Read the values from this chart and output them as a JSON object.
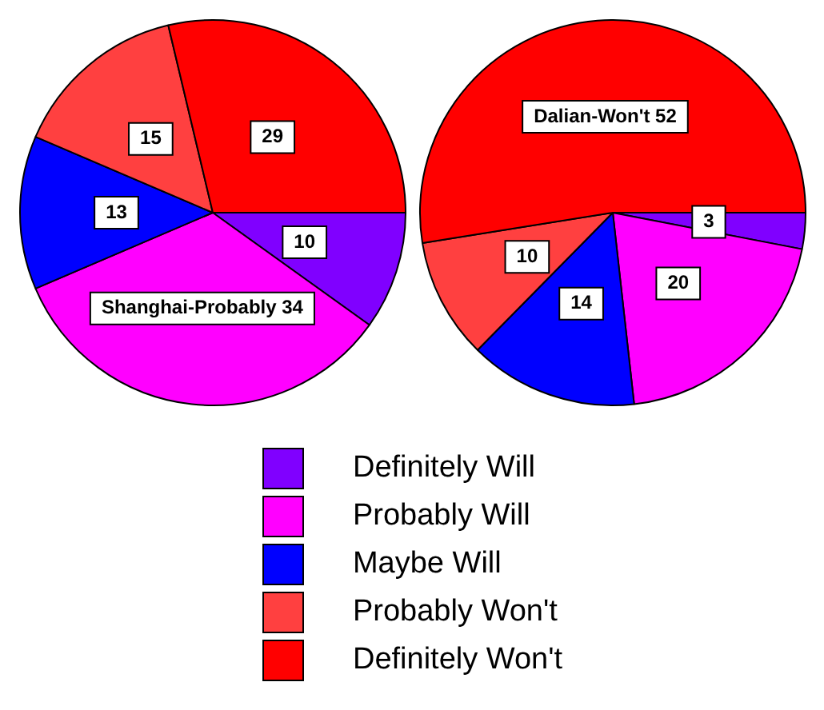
{
  "chart_data": {
    "type": "pie",
    "categories": [
      "Definitely Will",
      "Probably Will",
      "Maybe Will",
      "Probably Won't",
      "Definitely Won't"
    ],
    "colors": [
      "#8000ff",
      "#ff00ff",
      "#0000ff",
      "#ff4040",
      "#ff0000"
    ],
    "legend": "bottom",
    "series": [
      {
        "values": [
          10,
          34,
          13,
          15,
          29
        ],
        "value_labels": [
          "10",
          "Shanghai-Probably 34",
          "13",
          "15",
          "29"
        ]
      },
      {
        "values": [
          3,
          20,
          14,
          10,
          52
        ],
        "value_labels": [
          "3",
          "20",
          "14",
          "10",
          "Dalian-Won't 52"
        ]
      }
    ]
  }
}
